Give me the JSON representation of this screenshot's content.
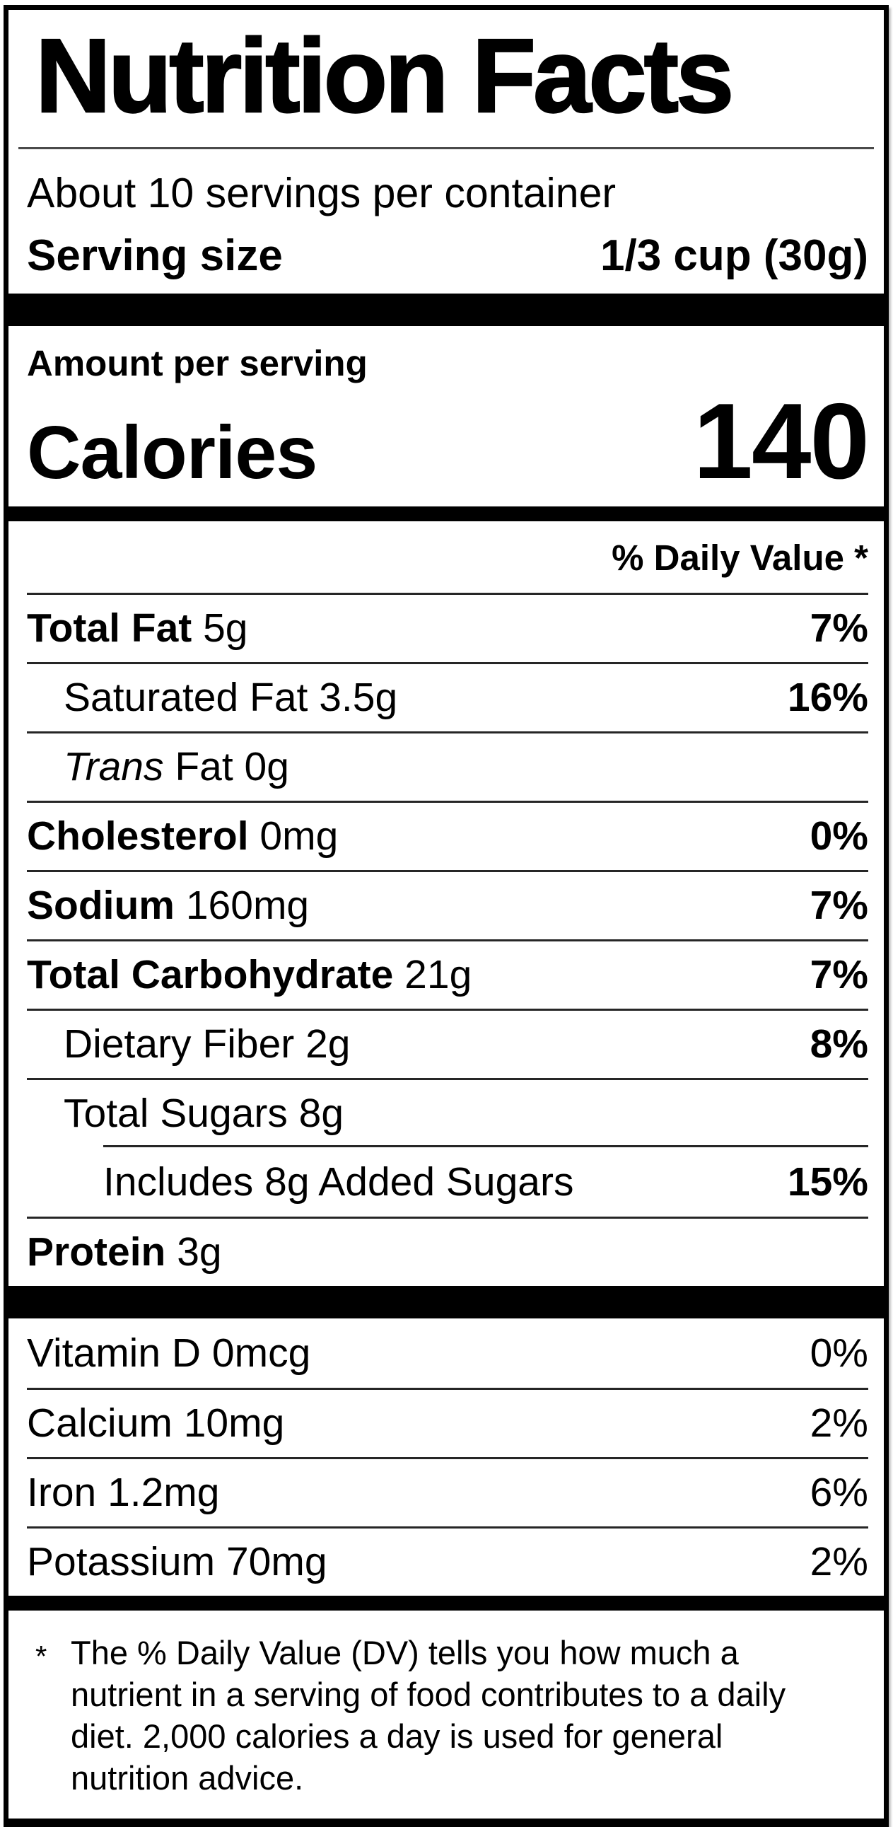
{
  "label": {
    "title": "Nutrition Facts",
    "servings_per_container": "About 10 servings per container",
    "serving_size_label": "Serving size",
    "serving_size_value": "1/3 cup (30g)",
    "amount_per_serving": "Amount per serving",
    "calories_label": "Calories",
    "calories_value": "140",
    "daily_value_header": "% Daily Value *",
    "nutrients": [
      {
        "name": "Total Fat",
        "amount": "5g",
        "dv": "7%",
        "bold": true,
        "indent": 0
      },
      {
        "name": "Saturated Fat",
        "amount": "3.5g",
        "dv": "16%",
        "bold": false,
        "indent": 1
      },
      {
        "name": "Trans",
        "name2": "Fat",
        "amount": "0g",
        "dv": "",
        "bold": false,
        "indent": 1,
        "italic": true
      },
      {
        "name": "Cholesterol",
        "amount": "0mg",
        "dv": "0%",
        "bold": true,
        "indent": 0
      },
      {
        "name": "Sodium",
        "amount": "160mg",
        "dv": "7%",
        "bold": true,
        "indent": 0
      },
      {
        "name": "Total Carbohydrate",
        "amount": "21g",
        "dv": "7%",
        "bold": true,
        "indent": 0
      },
      {
        "name": "Dietary Fiber",
        "amount": "2g",
        "dv": "8%",
        "bold": false,
        "indent": 1
      },
      {
        "name": "Total Sugars",
        "amount": "8g",
        "dv": "",
        "bold": false,
        "indent": 1
      },
      {
        "name": "Includes 8g Added Sugars",
        "amount": "",
        "dv": "15%",
        "bold": false,
        "indent": 2
      },
      {
        "name": "Protein",
        "amount": "3g",
        "dv": "",
        "bold": true,
        "indent": 0
      }
    ],
    "vitamins": [
      {
        "name": "Vitamin D",
        "amount": "0mcg",
        "dv": "0%"
      },
      {
        "name": "Calcium",
        "amount": "10mg",
        "dv": "2%"
      },
      {
        "name": "Iron",
        "amount": "1.2mg",
        "dv": "6%"
      },
      {
        "name": "Potassium",
        "amount": "70mg",
        "dv": "2%"
      }
    ],
    "footnote_marker": "*",
    "footnote": "The % Daily Value (DV) tells you how much a nutrient in a serving of food contributes to a daily diet. 2,000 calories a day is used for general nutrition advice.",
    "colors": {
      "ink": "#000000",
      "paper": "#ffffff"
    }
  }
}
